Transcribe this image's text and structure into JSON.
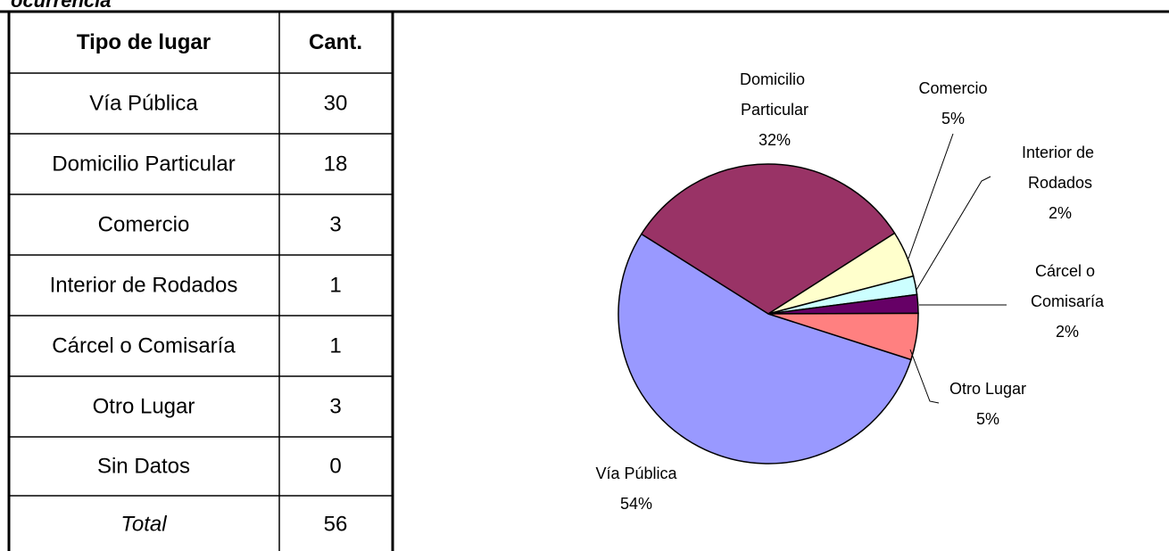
{
  "header": {
    "caption": "ocurrencia"
  },
  "table": {
    "columns": [
      "Tipo de lugar",
      "Cant."
    ],
    "rows": [
      [
        "Vía Pública",
        30
      ],
      [
        "Domicilio Particular",
        18
      ],
      [
        "Comercio",
        3
      ],
      [
        "Interior de Rodados",
        1
      ],
      [
        "Cárcel o Comisaría",
        1
      ],
      [
        "Otro Lugar",
        3
      ],
      [
        "Sin Datos",
        0
      ]
    ],
    "total": [
      "Total",
      56
    ]
  },
  "chart_data": {
    "type": "pie",
    "categories": [
      "Vía Pública",
      "Domicilio Particular",
      "Comercio",
      "Interior de Rodados",
      "Cárcel o Comisaría",
      "Otro Lugar"
    ],
    "values": [
      54,
      32,
      5,
      2,
      2,
      5
    ],
    "value_labels": [
      "54%",
      "32%",
      "5%",
      "2%",
      "2%",
      "5%"
    ],
    "colors": [
      "#9999ff",
      "#993366",
      "#ffffcc",
      "#ccffff",
      "#660066",
      "#ff8080"
    ]
  }
}
